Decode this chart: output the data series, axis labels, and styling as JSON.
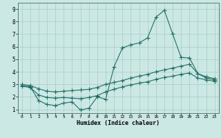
{
  "xlabel": "Humidex (Indice chaleur)",
  "background_color": "#cce8e4",
  "grid_color": "#aacfcb",
  "line_color": "#1a6e64",
  "xlim": [
    -0.5,
    23.5
  ],
  "ylim": [
    0.7,
    9.5
  ],
  "xticks": [
    0,
    1,
    2,
    3,
    4,
    5,
    6,
    7,
    8,
    9,
    10,
    11,
    12,
    13,
    14,
    15,
    16,
    17,
    18,
    19,
    20,
    21,
    22,
    23
  ],
  "yticks": [
    1,
    2,
    3,
    4,
    5,
    6,
    7,
    8,
    9
  ],
  "line1_x": [
    0,
    1,
    2,
    3,
    4,
    5,
    6,
    7,
    8,
    9,
    10,
    11,
    12,
    13,
    14,
    15,
    16,
    17,
    18,
    19,
    20,
    21,
    22,
    23
  ],
  "line1_y": [
    2.9,
    2.8,
    1.7,
    1.4,
    1.3,
    1.5,
    1.6,
    0.95,
    1.1,
    2.0,
    1.8,
    4.4,
    5.9,
    6.15,
    6.3,
    6.7,
    8.35,
    8.9,
    7.0,
    5.15,
    5.1,
    3.85,
    3.5,
    3.35
  ],
  "line2_x": [
    0,
    1,
    2,
    3,
    4,
    5,
    6,
    7,
    8,
    9,
    10,
    11,
    12,
    13,
    14,
    15,
    16,
    17,
    18,
    19,
    20,
    21,
    22,
    23
  ],
  "line2_y": [
    3.0,
    2.9,
    2.65,
    2.45,
    2.4,
    2.45,
    2.5,
    2.55,
    2.6,
    2.75,
    3.0,
    3.15,
    3.3,
    3.5,
    3.65,
    3.8,
    4.0,
    4.15,
    4.3,
    4.45,
    4.6,
    3.85,
    3.6,
    3.45
  ],
  "line3_x": [
    0,
    1,
    2,
    3,
    4,
    5,
    6,
    7,
    8,
    9,
    10,
    11,
    12,
    13,
    14,
    15,
    16,
    17,
    18,
    19,
    20,
    21,
    22,
    23
  ],
  "line3_y": [
    2.85,
    2.75,
    2.15,
    1.95,
    1.9,
    1.95,
    1.9,
    1.85,
    1.95,
    2.1,
    2.4,
    2.6,
    2.8,
    2.95,
    3.1,
    3.2,
    3.4,
    3.55,
    3.65,
    3.8,
    3.9,
    3.5,
    3.35,
    3.25
  ]
}
